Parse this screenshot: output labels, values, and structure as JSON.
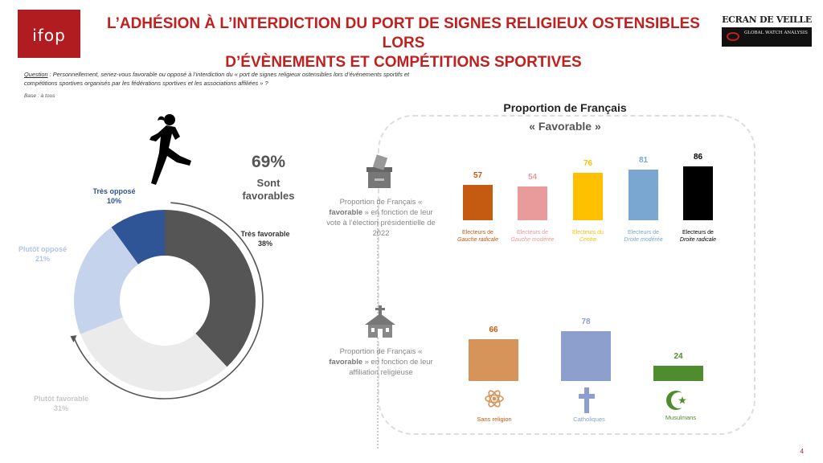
{
  "header": {
    "logo": "ifop",
    "title_line1": "L’ADHÉSION À L’INTERDICTION DU PORT DE SIGNES RELIGIEUX OSTENSIBLES LORS",
    "title_line2": "D’ÉVÈNEMENTS ET COMPÉTITIONS SPORTIVES",
    "brand_name": "ECRAN DE VEILLE",
    "brand_sub": "GLOBAL WATCH ANALYSIS"
  },
  "question": {
    "label": "Question",
    "text": " : Personnellement, seriez-vous favorable ou opposé à l’interdiction du « port de signes religieux ostensibles lors d’événements sportifs et compétitions sportives organisés par les fédérations sportives et les associations affiliées » ?",
    "base": "Base : à tous"
  },
  "summary": {
    "pct": "69%",
    "label_line1": "Sont",
    "label_line2": "favorables"
  },
  "colors": {
    "title_red": "#c0201f",
    "tres_favorable": "#555555",
    "plutot_favorable": "#ebebeb",
    "plutot_oppose": "#c5d3ec",
    "tres_oppose": "#2f5597"
  },
  "right": {
    "title": "Proportion de Français",
    "subtitle": "« Favorable »",
    "caption_vote": {
      "pre": "Proportion de Français «",
      "bold": "favorable",
      "post": "» en fonction de leur vote à l’élection présidentielle de 2022"
    },
    "caption_rel": {
      "pre": "Proportion de Français «",
      "bold": "favorable",
      "post": "» en fonction de leur affiliation religieuse"
    }
  },
  "chart_data": [
    {
      "type": "pie",
      "title": "",
      "labels": [
        "Très favorable",
        "Plutôt favorable",
        "Plutôt opposé",
        "Très opposé"
      ],
      "values": [
        38,
        31,
        21,
        10
      ],
      "display": [
        "38%",
        "31%",
        "21%",
        "10%"
      ],
      "colors": [
        "#555555",
        "#ebebeb",
        "#c5d3ec",
        "#2f5597"
      ]
    },
    {
      "type": "bar",
      "title": "Proportion de Français « Favorable » – vote présidentielle 2022",
      "categories": [
        "Gauche radicale",
        "Gauche modérée",
        "Centre",
        "Droite modérée",
        "Droite radicale"
      ],
      "label_prefix": "Electeurs de",
      "label_prefix_centre": "Electeurs du",
      "values": [
        57,
        54,
        76,
        81,
        86
      ],
      "colors": [
        "#c55a11",
        "#e99a9a",
        "#ffc000",
        "#7aa6d2",
        "#000000"
      ],
      "ylim": [
        0,
        100
      ]
    },
    {
      "type": "bar",
      "title": "Proportion de Français « Favorable » – affiliation religieuse",
      "categories": [
        "Sans religion",
        "Catholiques",
        "Musulmans"
      ],
      "values": [
        66,
        78,
        24
      ],
      "colors": [
        "#d6935a",
        "#8da0cd",
        "#4e8c2f"
      ],
      "ylim": [
        0,
        100
      ]
    }
  ],
  "page_number": "4"
}
